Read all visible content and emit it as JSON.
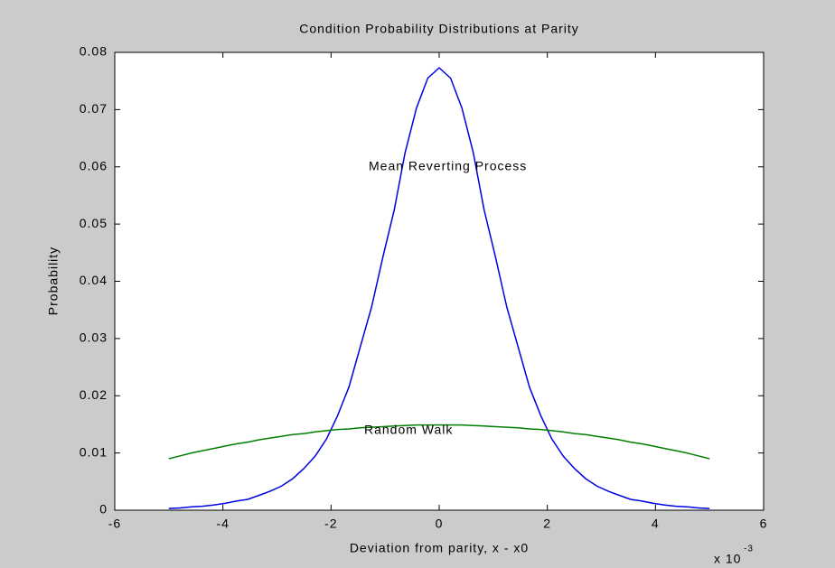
{
  "chart_data": {
    "type": "line",
    "title": "Condition Probability Distributions at Parity",
    "x_label": "Deviation from parity, x - x0",
    "y_label": "Probability",
    "x_multiplier": {
      "base": "x 10",
      "exponent": "-3"
    },
    "annotations": [
      "Mean Reverting Process",
      "Random Walk"
    ],
    "x": [
      -5,
      -4.79,
      -4.58,
      -4.38,
      -4.17,
      -3.96,
      -3.75,
      -3.54,
      -3.33,
      -3.13,
      -2.92,
      -2.71,
      -2.5,
      -2.29,
      -2.08,
      -1.88,
      -1.67,
      -1.46,
      -1.25,
      -1.04,
      -0.83,
      -0.63,
      -0.42,
      -0.21,
      0,
      0.21,
      0.42,
      0.63,
      0.83,
      1.04,
      1.25,
      1.46,
      1.67,
      1.88,
      2.08,
      2.29,
      2.5,
      2.71,
      2.92,
      3.13,
      3.33,
      3.54,
      3.75,
      3.96,
      4.17,
      4.38,
      4.58,
      4.79,
      5
    ],
    "series": [
      {
        "color": "#0000e0",
        "values": [
          0.0003,
          0.0004,
          0.0006,
          0.0007,
          0.0009,
          0.0012,
          0.0016,
          0.0019,
          0.0026,
          0.0033,
          0.0042,
          0.0055,
          0.0073,
          0.0095,
          0.0125,
          0.0165,
          0.0215,
          0.0285,
          0.0355,
          0.0443,
          0.0525,
          0.0625,
          0.0703,
          0.0755,
          0.0773,
          0.0755,
          0.0703,
          0.0625,
          0.0525,
          0.0443,
          0.0355,
          0.0285,
          0.0215,
          0.0165,
          0.0125,
          0.0095,
          0.0073,
          0.0055,
          0.0042,
          0.0033,
          0.0026,
          0.0019,
          0.0016,
          0.0012,
          0.0009,
          0.0007,
          0.0006,
          0.0004,
          0.0003
        ]
      },
      {
        "color": "#007f00",
        "values": [
          0.009,
          0.0095,
          0.01,
          0.0104,
          0.0108,
          0.0112,
          0.0116,
          0.0119,
          0.0123,
          0.0126,
          0.0129,
          0.0132,
          0.0134,
          0.0137,
          0.0139,
          0.0141,
          0.0142,
          0.0144,
          0.0145,
          0.0146,
          0.0147,
          0.0148,
          0.0149,
          0.0149,
          0.0149,
          0.0149,
          0.0149,
          0.0148,
          0.0147,
          0.0146,
          0.0145,
          0.0144,
          0.0142,
          0.0141,
          0.0139,
          0.0137,
          0.0134,
          0.0132,
          0.0129,
          0.0126,
          0.0123,
          0.0119,
          0.0116,
          0.0112,
          0.0108,
          0.0104,
          0.01,
          0.0095,
          0.009
        ]
      }
    ],
    "xlim": [
      -6,
      6
    ],
    "xticks": [
      -6,
      -4,
      -2,
      0,
      2,
      4,
      6
    ],
    "ylim": [
      0,
      0.08
    ],
    "yticks": [
      0,
      0.01,
      0.02,
      0.03,
      0.04,
      0.05,
      0.06,
      0.07,
      0.08
    ],
    "grid": false
  }
}
